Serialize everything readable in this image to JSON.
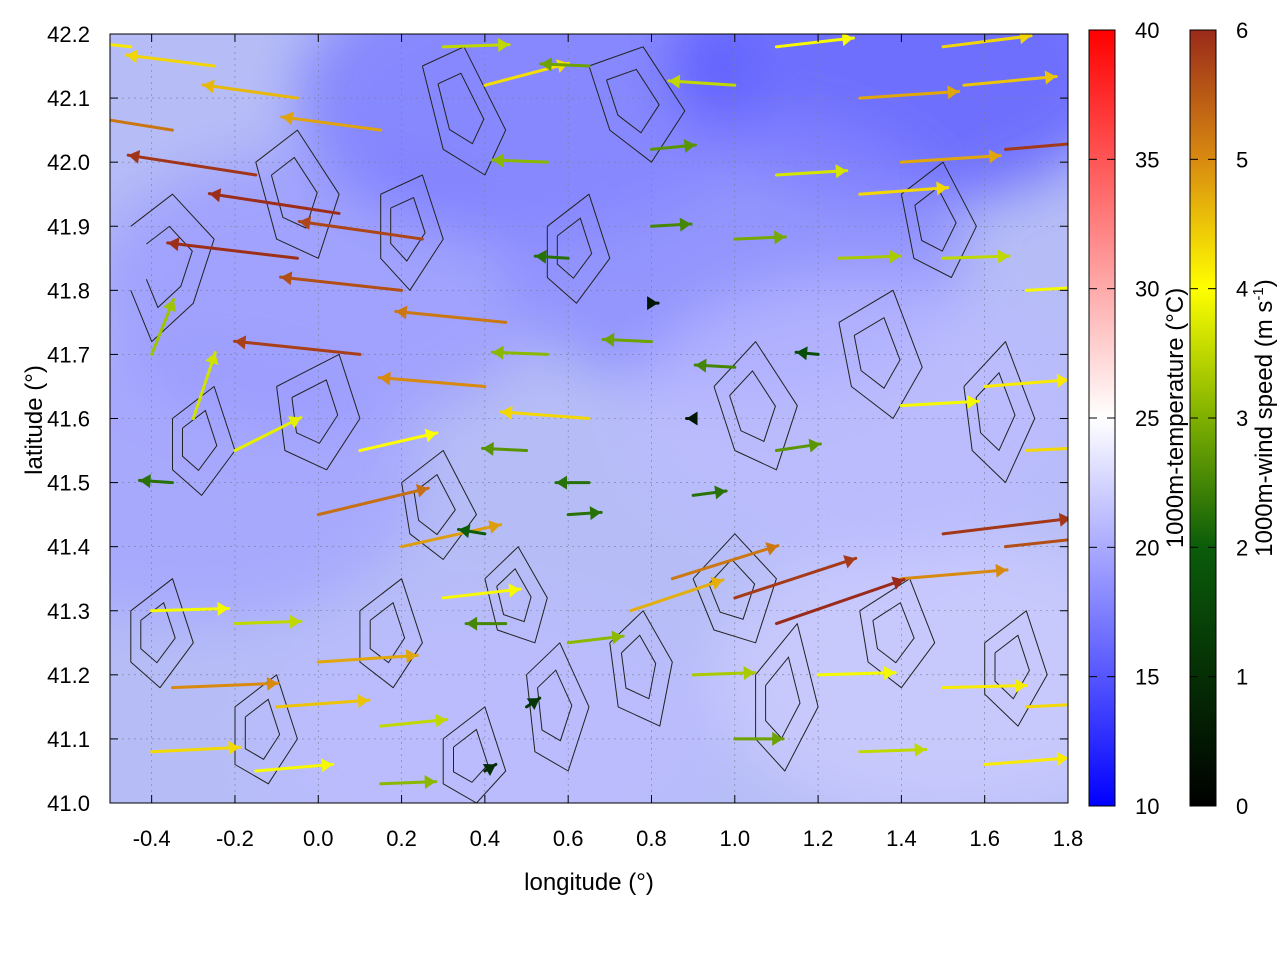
{
  "chart_data": {
    "type": "vector-field",
    "xlabel": "longitude (°)",
    "ylabel": "latitude (°)",
    "xlim": [
      -0.5,
      1.8
    ],
    "ylim": [
      41.0,
      42.2
    ],
    "x_ticks": [
      "-0.4",
      "-0.2",
      "0.0",
      "0.2",
      "0.4",
      "0.6",
      "0.8",
      "1.0",
      "1.2",
      "1.4",
      "1.6",
      "1.8"
    ],
    "y_ticks": [
      "41.0",
      "41.1",
      "41.2",
      "41.3",
      "41.4",
      "41.5",
      "41.6",
      "41.7",
      "41.8",
      "41.9",
      "42.0",
      "42.1",
      "42.2"
    ],
    "grid": true,
    "colorbars": [
      {
        "label": "1000m-temperature (°C)",
        "range": [
          10,
          40
        ],
        "ticks": [
          "10",
          "15",
          "20",
          "25",
          "30",
          "35",
          "40"
        ],
        "colors": [
          "#0000ff",
          "#ffffff",
          "#ff0000"
        ]
      },
      {
        "label_main": "1000m-wind speed (m s",
        "label_sup": "-1",
        "label_end": ")",
        "range": [
          0,
          6
        ],
        "ticks": [
          "0",
          "1",
          "2",
          "3",
          "4",
          "5",
          "6"
        ],
        "colors": [
          "#000000",
          "#0a5c0a",
          "#7fb000",
          "#ffff00",
          "#d88a10",
          "#9a2a1a"
        ]
      }
    ],
    "temperature_regions": [
      {
        "lon": -0.3,
        "lat": 41.5,
        "temp": 19.5
      },
      {
        "lon": 0.0,
        "lat": 41.8,
        "temp": 19
      },
      {
        "lon": 0.5,
        "lat": 42.1,
        "temp": 17
      },
      {
        "lon": 1.4,
        "lat": 42.15,
        "temp": 15
      },
      {
        "lon": 1.0,
        "lat": 41.85,
        "temp": 18
      },
      {
        "lon": 0.4,
        "lat": 41.1,
        "temp": 21
      },
      {
        "lon": 1.5,
        "lat": 41.2,
        "temp": 22
      },
      {
        "lon": 1.3,
        "lat": 41.6,
        "temp": 21
      }
    ],
    "wind_vectors": [
      {
        "lon": -0.45,
        "lat": 42.18,
        "u": -3.8,
        "v": 0.4
      },
      {
        "lon": -0.25,
        "lat": 42.15,
        "u": -4.0,
        "v": 0.5
      },
      {
        "lon": -0.05,
        "lat": 42.1,
        "u": -4.3,
        "v": 0.6
      },
      {
        "lon": 0.15,
        "lat": 42.05,
        "u": -4.5,
        "v": 0.6
      },
      {
        "lon": -0.35,
        "lat": 42.05,
        "u": -5.0,
        "v": 0.8
      },
      {
        "lon": -0.15,
        "lat": 41.98,
        "u": -5.8,
        "v": 0.9
      },
      {
        "lon": 0.05,
        "lat": 41.92,
        "u": -5.9,
        "v": 0.9
      },
      {
        "lon": 0.25,
        "lat": 41.88,
        "u": -5.6,
        "v": 0.8
      },
      {
        "lon": -0.05,
        "lat": 41.85,
        "u": -5.9,
        "v": 0.7
      },
      {
        "lon": 0.2,
        "lat": 41.8,
        "u": -5.5,
        "v": 0.6
      },
      {
        "lon": 0.45,
        "lat": 41.75,
        "u": -5.0,
        "v": 0.5
      },
      {
        "lon": 0.1,
        "lat": 41.7,
        "u": -5.7,
        "v": 0.6
      },
      {
        "lon": 0.4,
        "lat": 41.65,
        "u": -4.8,
        "v": 0.4
      },
      {
        "lon": 0.65,
        "lat": 41.6,
        "u": -4.0,
        "v": 0.3
      },
      {
        "lon": -0.4,
        "lat": 41.7,
        "u": 1.0,
        "v": 2.5
      },
      {
        "lon": -0.3,
        "lat": 41.6,
        "u": 1.0,
        "v": 3.0
      },
      {
        "lon": -0.2,
        "lat": 41.55,
        "u": 3.0,
        "v": 1.5
      },
      {
        "lon": -0.35,
        "lat": 41.5,
        "u": -1.5,
        "v": 0.1
      },
      {
        "lon": 0.0,
        "lat": 41.45,
        "u": 5.0,
        "v": 1.2
      },
      {
        "lon": 0.2,
        "lat": 41.4,
        "u": 4.5,
        "v": 1.0
      },
      {
        "lon": 0.1,
        "lat": 41.55,
        "u": 3.5,
        "v": 0.8
      },
      {
        "lon": 0.5,
        "lat": 41.55,
        "u": -2.0,
        "v": 0.1
      },
      {
        "lon": 0.65,
        "lat": 41.5,
        "u": -1.5,
        "v": 0.0
      },
      {
        "lon": 0.9,
        "lat": 41.48,
        "u": 1.5,
        "v": 0.2
      },
      {
        "lon": 0.6,
        "lat": 41.45,
        "u": 1.5,
        "v": 0.1
      },
      {
        "lon": 0.4,
        "lat": 41.42,
        "u": -1.2,
        "v": 0.2
      },
      {
        "lon": 0.55,
        "lat": 41.7,
        "u": -2.5,
        "v": 0.1
      },
      {
        "lon": 0.8,
        "lat": 41.72,
        "u": -2.2,
        "v": 0.1
      },
      {
        "lon": 1.0,
        "lat": 41.68,
        "u": -1.8,
        "v": 0.1
      },
      {
        "lon": 1.2,
        "lat": 41.7,
        "u": -1.0,
        "v": 0.1
      },
      {
        "lon": 1.4,
        "lat": 41.62,
        "u": 3.5,
        "v": 0.2
      },
      {
        "lon": 1.6,
        "lat": 41.65,
        "u": 3.8,
        "v": 0.3
      },
      {
        "lon": 1.7,
        "lat": 41.55,
        "u": 4.0,
        "v": 0.2
      },
      {
        "lon": 1.5,
        "lat": 41.42,
        "u": 5.8,
        "v": 0.7
      },
      {
        "lon": 1.65,
        "lat": 41.4,
        "u": 5.5,
        "v": 0.6
      },
      {
        "lon": 1.4,
        "lat": 41.35,
        "u": 4.8,
        "v": 0.4
      },
      {
        "lon": 0.85,
        "lat": 41.35,
        "u": 4.8,
        "v": 1.5
      },
      {
        "lon": 1.0,
        "lat": 41.32,
        "u": 5.5,
        "v": 1.8
      },
      {
        "lon": 1.1,
        "lat": 41.28,
        "u": 5.8,
        "v": 2.0
      },
      {
        "lon": 0.75,
        "lat": 41.3,
        "u": 4.2,
        "v": 1.4
      },
      {
        "lon": 0.6,
        "lat": 41.25,
        "u": 2.5,
        "v": 0.3
      },
      {
        "lon": 0.9,
        "lat": 41.2,
        "u": 2.8,
        "v": 0.1
      },
      {
        "lon": 1.2,
        "lat": 41.2,
        "u": 3.5,
        "v": 0.1
      },
      {
        "lon": 1.5,
        "lat": 41.18,
        "u": 3.8,
        "v": 0.1
      },
      {
        "lon": 1.7,
        "lat": 41.15,
        "u": 4.0,
        "v": 0.2
      },
      {
        "lon": 1.0,
        "lat": 41.1,
        "u": 2.2,
        "v": 0.0
      },
      {
        "lon": 1.3,
        "lat": 41.08,
        "u": 3.0,
        "v": 0.1
      },
      {
        "lon": 1.6,
        "lat": 41.06,
        "u": 3.8,
        "v": 0.3
      },
      {
        "lon": -0.4,
        "lat": 41.3,
        "u": 3.5,
        "v": 0.1
      },
      {
        "lon": -0.2,
        "lat": 41.28,
        "u": 3.0,
        "v": 0.1
      },
      {
        "lon": 0.0,
        "lat": 41.22,
        "u": 4.5,
        "v": 0.3
      },
      {
        "lon": -0.35,
        "lat": 41.18,
        "u": 4.8,
        "v": 0.2
      },
      {
        "lon": -0.1,
        "lat": 41.15,
        "u": 4.2,
        "v": 0.3
      },
      {
        "lon": 0.15,
        "lat": 41.12,
        "u": 3.0,
        "v": 0.3
      },
      {
        "lon": -0.4,
        "lat": 41.08,
        "u": 4.0,
        "v": 0.2
      },
      {
        "lon": -0.15,
        "lat": 41.05,
        "u": 3.5,
        "v": 0.3
      },
      {
        "lon": 0.15,
        "lat": 41.03,
        "u": 2.5,
        "v": 0.1
      },
      {
        "lon": 0.4,
        "lat": 41.05,
        "u": 0.5,
        "v": 0.3
      },
      {
        "lon": 0.5,
        "lat": 41.15,
        "u": 0.6,
        "v": 0.4
      },
      {
        "lon": 0.45,
        "lat": 41.28,
        "u": -1.8,
        "v": 0.0
      },
      {
        "lon": 0.3,
        "lat": 41.32,
        "u": 3.5,
        "v": 0.4
      },
      {
        "lon": 0.6,
        "lat": 41.85,
        "u": -1.5,
        "v": 0.1
      },
      {
        "lon": 0.8,
        "lat": 41.9,
        "u": 1.8,
        "v": 0.1
      },
      {
        "lon": 1.0,
        "lat": 41.88,
        "u": 2.3,
        "v": 0.1
      },
      {
        "lon": 1.25,
        "lat": 41.85,
        "u": 2.8,
        "v": 0.1
      },
      {
        "lon": 1.5,
        "lat": 41.85,
        "u": 3.0,
        "v": 0.1
      },
      {
        "lon": 1.7,
        "lat": 41.8,
        "u": 3.5,
        "v": 0.2
      },
      {
        "lon": 0.55,
        "lat": 42.0,
        "u": -2.5,
        "v": 0.1
      },
      {
        "lon": 0.8,
        "lat": 42.02,
        "u": 2.0,
        "v": 0.2
      },
      {
        "lon": 1.1,
        "lat": 41.98,
        "u": 3.2,
        "v": 0.2
      },
      {
        "lon": 1.4,
        "lat": 42.0,
        "u": 4.5,
        "v": 0.3
      },
      {
        "lon": 1.65,
        "lat": 42.02,
        "u": 5.8,
        "v": 0.5
      },
      {
        "lon": 1.3,
        "lat": 41.95,
        "u": 4.0,
        "v": 0.3
      },
      {
        "lon": 0.4,
        "lat": 42.12,
        "u": 3.8,
        "v": 1.0
      },
      {
        "lon": 0.65,
        "lat": 42.15,
        "u": -2.2,
        "v": 0.1
      },
      {
        "lon": 1.0,
        "lat": 42.12,
        "u": -3.0,
        "v": 0.2
      },
      {
        "lon": 1.3,
        "lat": 42.1,
        "u": 4.5,
        "v": 0.3
      },
      {
        "lon": 1.55,
        "lat": 42.12,
        "u": 4.2,
        "v": 0.4
      },
      {
        "lon": 1.5,
        "lat": 42.18,
        "u": 4.0,
        "v": 0.5
      },
      {
        "lon": 0.3,
        "lat": 42.18,
        "u": 3.0,
        "v": 0.1
      },
      {
        "lon": 1.1,
        "lat": 42.18,
        "u": 3.5,
        "v": 0.4
      },
      {
        "lon": 0.9,
        "lat": 41.6,
        "u": -0.3,
        "v": 0.0
      },
      {
        "lon": 0.8,
        "lat": 41.78,
        "u": 0.3,
        "v": 0.0
      },
      {
        "lon": 1.1,
        "lat": 41.55,
        "u": 2.0,
        "v": 0.3
      }
    ],
    "contour_traces": [
      [
        [
          -0.45,
          41.9
        ],
        [
          -0.35,
          41.95
        ],
        [
          -0.25,
          41.88
        ],
        [
          -0.3,
          41.78
        ],
        [
          -0.4,
          41.72
        ],
        [
          -0.45,
          41.8
        ]
      ],
      [
        [
          -0.15,
          42.0
        ],
        [
          -0.05,
          42.05
        ],
        [
          0.05,
          41.95
        ],
        [
          0.0,
          41.85
        ],
        [
          -0.1,
          41.88
        ],
        [
          -0.15,
          42.0
        ]
      ],
      [
        [
          0.15,
          41.95
        ],
        [
          0.25,
          41.98
        ],
        [
          0.3,
          41.88
        ],
        [
          0.22,
          41.8
        ],
        [
          0.15,
          41.85
        ],
        [
          0.15,
          41.95
        ]
      ],
      [
        [
          0.25,
          42.15
        ],
        [
          0.35,
          42.18
        ],
        [
          0.45,
          42.05
        ],
        [
          0.4,
          41.98
        ],
        [
          0.3,
          42.02
        ],
        [
          0.25,
          42.15
        ]
      ],
      [
        [
          -0.35,
          41.6
        ],
        [
          -0.25,
          41.65
        ],
        [
          -0.2,
          41.55
        ],
        [
          -0.28,
          41.48
        ],
        [
          -0.35,
          41.52
        ],
        [
          -0.35,
          41.6
        ]
      ],
      [
        [
          -0.1,
          41.65
        ],
        [
          0.05,
          41.7
        ],
        [
          0.1,
          41.6
        ],
        [
          0.02,
          41.52
        ],
        [
          -0.08,
          41.55
        ],
        [
          -0.1,
          41.65
        ]
      ],
      [
        [
          0.2,
          41.5
        ],
        [
          0.3,
          41.55
        ],
        [
          0.38,
          41.45
        ],
        [
          0.3,
          41.38
        ],
        [
          0.22,
          41.42
        ],
        [
          0.2,
          41.5
        ]
      ],
      [
        [
          0.4,
          41.35
        ],
        [
          0.48,
          41.4
        ],
        [
          0.55,
          41.32
        ],
        [
          0.52,
          41.25
        ],
        [
          0.43,
          41.27
        ],
        [
          0.4,
          41.35
        ]
      ],
      [
        [
          0.5,
          41.2
        ],
        [
          0.58,
          41.25
        ],
        [
          0.65,
          41.15
        ],
        [
          0.6,
          41.05
        ],
        [
          0.52,
          41.08
        ],
        [
          0.5,
          41.2
        ]
      ],
      [
        [
          0.7,
          41.25
        ],
        [
          0.78,
          41.3
        ],
        [
          0.85,
          41.22
        ],
        [
          0.82,
          41.12
        ],
        [
          0.72,
          41.15
        ],
        [
          0.7,
          41.25
        ]
      ],
      [
        [
          0.9,
          41.35
        ],
        [
          1.0,
          41.42
        ],
        [
          1.1,
          41.35
        ],
        [
          1.05,
          41.25
        ],
        [
          0.95,
          41.27
        ],
        [
          0.9,
          41.35
        ]
      ],
      [
        [
          1.05,
          41.2
        ],
        [
          1.15,
          41.28
        ],
        [
          1.2,
          41.15
        ],
        [
          1.12,
          41.05
        ],
        [
          1.05,
          41.1
        ],
        [
          1.05,
          41.2
        ]
      ],
      [
        [
          0.95,
          41.65
        ],
        [
          1.05,
          41.72
        ],
        [
          1.15,
          41.62
        ],
        [
          1.1,
          41.52
        ],
        [
          1.0,
          41.55
        ],
        [
          0.95,
          41.65
        ]
      ],
      [
        [
          1.25,
          41.75
        ],
        [
          1.38,
          41.8
        ],
        [
          1.45,
          41.68
        ],
        [
          1.38,
          41.6
        ],
        [
          1.28,
          41.65
        ],
        [
          1.25,
          41.75
        ]
      ],
      [
        [
          1.55,
          41.65
        ],
        [
          1.65,
          41.72
        ],
        [
          1.72,
          41.6
        ],
        [
          1.65,
          41.5
        ],
        [
          1.57,
          41.55
        ],
        [
          1.55,
          41.65
        ]
      ],
      [
        [
          1.4,
          41.95
        ],
        [
          1.5,
          42.0
        ],
        [
          1.58,
          41.9
        ],
        [
          1.52,
          41.82
        ],
        [
          1.43,
          41.85
        ],
        [
          1.4,
          41.95
        ]
      ],
      [
        [
          0.65,
          42.15
        ],
        [
          0.78,
          42.18
        ],
        [
          0.88,
          42.08
        ],
        [
          0.8,
          42.0
        ],
        [
          0.7,
          42.05
        ],
        [
          0.65,
          42.15
        ]
      ],
      [
        [
          0.55,
          41.9
        ],
        [
          0.65,
          41.95
        ],
        [
          0.7,
          41.85
        ],
        [
          0.62,
          41.78
        ],
        [
          0.55,
          41.82
        ],
        [
          0.55,
          41.9
        ]
      ],
      [
        [
          -0.45,
          41.3
        ],
        [
          -0.35,
          41.35
        ],
        [
          -0.3,
          41.25
        ],
        [
          -0.38,
          41.18
        ],
        [
          -0.45,
          41.22
        ],
        [
          -0.45,
          41.3
        ]
      ],
      [
        [
          -0.2,
          41.15
        ],
        [
          -0.1,
          41.2
        ],
        [
          -0.05,
          41.1
        ],
        [
          -0.12,
          41.03
        ],
        [
          -0.2,
          41.06
        ],
        [
          -0.2,
          41.15
        ]
      ],
      [
        [
          0.1,
          41.3
        ],
        [
          0.2,
          41.35
        ],
        [
          0.25,
          41.25
        ],
        [
          0.18,
          41.18
        ],
        [
          0.1,
          41.22
        ],
        [
          0.1,
          41.3
        ]
      ],
      [
        [
          0.3,
          41.1
        ],
        [
          0.4,
          41.15
        ],
        [
          0.45,
          41.05
        ],
        [
          0.38,
          41.0
        ],
        [
          0.3,
          41.03
        ],
        [
          0.3,
          41.1
        ]
      ],
      [
        [
          1.3,
          41.3
        ],
        [
          1.42,
          41.35
        ],
        [
          1.48,
          41.25
        ],
        [
          1.4,
          41.18
        ],
        [
          1.32,
          41.22
        ],
        [
          1.3,
          41.3
        ]
      ],
      [
        [
          1.6,
          41.25
        ],
        [
          1.7,
          41.3
        ],
        [
          1.75,
          41.2
        ],
        [
          1.68,
          41.12
        ],
        [
          1.6,
          41.17
        ],
        [
          1.6,
          41.25
        ]
      ]
    ]
  }
}
